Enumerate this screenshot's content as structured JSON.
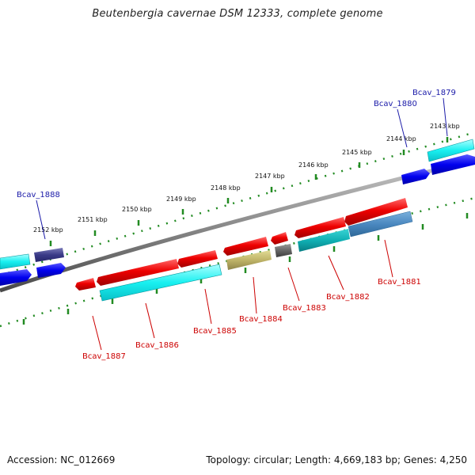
{
  "title": "Beutenbergia cavernae DSM 12333, complete genome",
  "footer": {
    "accession": "Accession: NC_012669",
    "summary": "Topology: circular; Length: 4,669,183 bp; Genes: 4,250"
  },
  "scale_labels": [
    "2143 kbp",
    "2144 kbp",
    "2145 kbp",
    "2146 kbp",
    "2147 kbp",
    "2148 kbp",
    "2149 kbp",
    "2150 kbp",
    "2151 kbp",
    "2152 kbp"
  ],
  "gene_labels": {
    "top": [
      "Bcav_1879",
      "Bcav_1880",
      "Bcav_1888"
    ],
    "bottom": [
      "Bcav_1881",
      "Bcav_1882",
      "Bcav_1883",
      "Bcav_1884",
      "Bcav_1885",
      "Bcav_1886",
      "Bcav_1887"
    ]
  },
  "colors": {
    "label_top": "#1a1aa8",
    "label_bottom": "#cc0000",
    "tick": "#228b22",
    "backbone": "#8a8a8a"
  }
}
